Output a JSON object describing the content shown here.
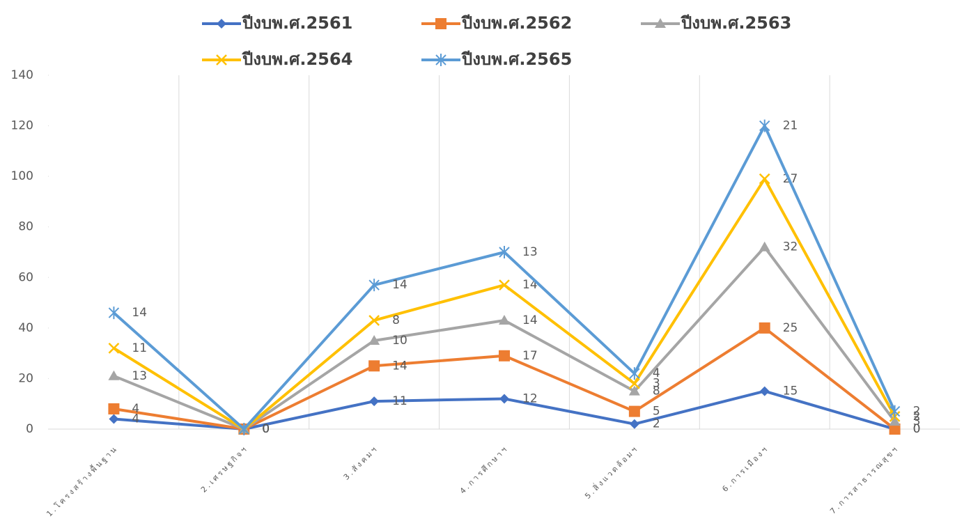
{
  "chart_data": {
    "type": "line",
    "stacked": true,
    "categories": [
      "1.โครงสร้างพื้นฐาน",
      "2.เศรษฐกิจฯ",
      "3.สังคมฯ",
      "4.การศึกษาฯ",
      "5.สิ่งแวดล้อมฯ",
      "6.การเมืองฯ",
      "7.การสาธารณสุขฯ"
    ],
    "series": [
      {
        "name": "ปีงบพ.ศ.2561",
        "color": "#4472c4",
        "marker": "diamond",
        "values": [
          4,
          0,
          11,
          12,
          2,
          15,
          0
        ]
      },
      {
        "name": "ปีงบพ.ศ.2562",
        "color": "#ed7d31",
        "marker": "square",
        "values": [
          4,
          0,
          14,
          17,
          5,
          25,
          0
        ]
      },
      {
        "name": "ปีงบพ.ศ.2563",
        "color": "#a5a5a5",
        "marker": "triangle",
        "values": [
          13,
          0,
          10,
          14,
          8,
          32,
          3
        ]
      },
      {
        "name": "ปีงบพ.ศ.2564",
        "color": "#ffc000",
        "marker": "x",
        "values": [
          11,
          0,
          8,
          14,
          3,
          27,
          2
        ]
      },
      {
        "name": "ปีงบพ.ศ.2565",
        "color": "#5b9bd5",
        "marker": "star",
        "values": [
          14,
          0,
          14,
          13,
          4,
          21,
          2
        ]
      }
    ],
    "ylim": [
      0,
      140
    ],
    "yticks": [
      0,
      20,
      40,
      60,
      80,
      100,
      120,
      140
    ],
    "legend": "top",
    "xgrid": true
  }
}
